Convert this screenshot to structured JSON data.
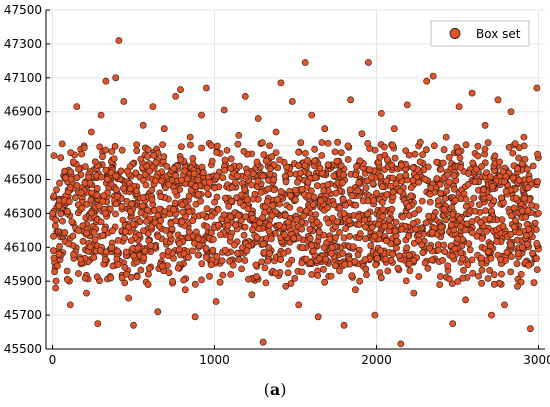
{
  "caption": {
    "open": "(",
    "label": "a",
    "close": ")"
  },
  "colors": {
    "marker_fill": "#E2542A",
    "marker_stroke": "#2B1A14",
    "grid": "#E6E6E6",
    "axis": "#000000"
  },
  "chart_data": {
    "type": "scatter",
    "title": "",
    "xlabel": "",
    "ylabel": "",
    "xlim": [
      -40,
      3040
    ],
    "ylim": [
      45500,
      47500
    ],
    "x_ticks": [
      0,
      1000,
      2000,
      3000
    ],
    "x_tick_labels": [
      "0",
      "1000",
      "2000",
      "3000"
    ],
    "y_ticks": [
      45500,
      45700,
      45900,
      46100,
      46300,
      46500,
      46700,
      46900,
      47100,
      47300,
      47500
    ],
    "y_tick_labels": [
      "45500",
      "45700",
      "45900",
      "46100",
      "46300",
      "46500",
      "46700",
      "46900",
      "47100",
      "47300",
      "47500"
    ],
    "grid": true,
    "legend": {
      "position": "top-right",
      "entries": [
        "Box set"
      ]
    },
    "series": [
      {
        "name": "Box set",
        "points_note_count": 3000,
        "core_band": [
          46000,
          46600
        ],
        "x": [
          0,
          100,
          200,
          300,
          400,
          500,
          600,
          700,
          800,
          900,
          1000,
          1100,
          1200,
          1300,
          1400,
          1500,
          1600,
          1700,
          1800,
          1900,
          2000,
          2100,
          2200,
          2300,
          2400,
          2500,
          2600,
          2700,
          2800,
          2900,
          3000
        ],
        "y": [
          46300,
          46120,
          46480,
          46250,
          46400,
          46050,
          46550,
          46200,
          46350,
          46150,
          46450,
          46280,
          46080,
          46520,
          46230,
          46380,
          46110,
          46470,
          46300,
          46180,
          46420,
          46060,
          46340,
          46500,
          46220,
          46150,
          46390,
          46270,
          46430,
          46100,
          46300
        ],
        "outliers": [
          [
            20,
            45860
          ],
          [
            60,
            46710
          ],
          [
            90,
            45960
          ],
          [
            110,
            45760
          ],
          [
            150,
            46930
          ],
          [
            180,
            46650
          ],
          [
            210,
            45830
          ],
          [
            240,
            46780
          ],
          [
            280,
            45650
          ],
          [
            300,
            46880
          ],
          [
            330,
            47080
          ],
          [
            360,
            45920
          ],
          [
            390,
            47100
          ],
          [
            410,
            47320
          ],
          [
            440,
            46960
          ],
          [
            470,
            45800
          ],
          [
            500,
            45640
          ],
          [
            520,
            46670
          ],
          [
            560,
            46820
          ],
          [
            590,
            45880
          ],
          [
            620,
            46930
          ],
          [
            650,
            45720
          ],
          [
            690,
            46800
          ],
          [
            720,
            45950
          ],
          [
            760,
            46990
          ],
          [
            790,
            47030
          ],
          [
            820,
            45850
          ],
          [
            850,
            46750
          ],
          [
            880,
            45690
          ],
          [
            920,
            46880
          ],
          [
            950,
            47040
          ],
          [
            980,
            46700
          ],
          [
            1010,
            45780
          ],
          [
            1060,
            46910
          ],
          [
            1100,
            45940
          ],
          [
            1150,
            46760
          ],
          [
            1190,
            46990
          ],
          [
            1230,
            45820
          ],
          [
            1270,
            46860
          ],
          [
            1300,
            45540
          ],
          [
            1340,
            46700
          ],
          [
            1380,
            46780
          ],
          [
            1410,
            47070
          ],
          [
            1440,
            45870
          ],
          [
            1480,
            46960
          ],
          [
            1520,
            45760
          ],
          [
            1560,
            47190
          ],
          [
            1600,
            46880
          ],
          [
            1640,
            45690
          ],
          [
            1680,
            46800
          ],
          [
            1720,
            45930
          ],
          [
            1760,
            46720
          ],
          [
            1800,
            45640
          ],
          [
            1840,
            46970
          ],
          [
            1870,
            45850
          ],
          [
            1910,
            46770
          ],
          [
            1950,
            47190
          ],
          [
            1990,
            45700
          ],
          [
            2030,
            46890
          ],
          [
            2070,
            45960
          ],
          [
            2110,
            46800
          ],
          [
            2150,
            45530
          ],
          [
            2190,
            46940
          ],
          [
            2230,
            45830
          ],
          [
            2270,
            46720
          ],
          [
            2310,
            47080
          ],
          [
            2350,
            47110
          ],
          [
            2390,
            45880
          ],
          [
            2430,
            46750
          ],
          [
            2470,
            45650
          ],
          [
            2510,
            46930
          ],
          [
            2550,
            45790
          ],
          [
            2590,
            47010
          ],
          [
            2630,
            45930
          ],
          [
            2670,
            46820
          ],
          [
            2710,
            45700
          ],
          [
            2750,
            46970
          ],
          [
            2790,
            45760
          ],
          [
            2830,
            46900
          ],
          [
            2870,
            45870
          ],
          [
            2910,
            46750
          ],
          [
            2950,
            45620
          ],
          [
            2990,
            47040
          ]
        ]
      }
    ]
  }
}
